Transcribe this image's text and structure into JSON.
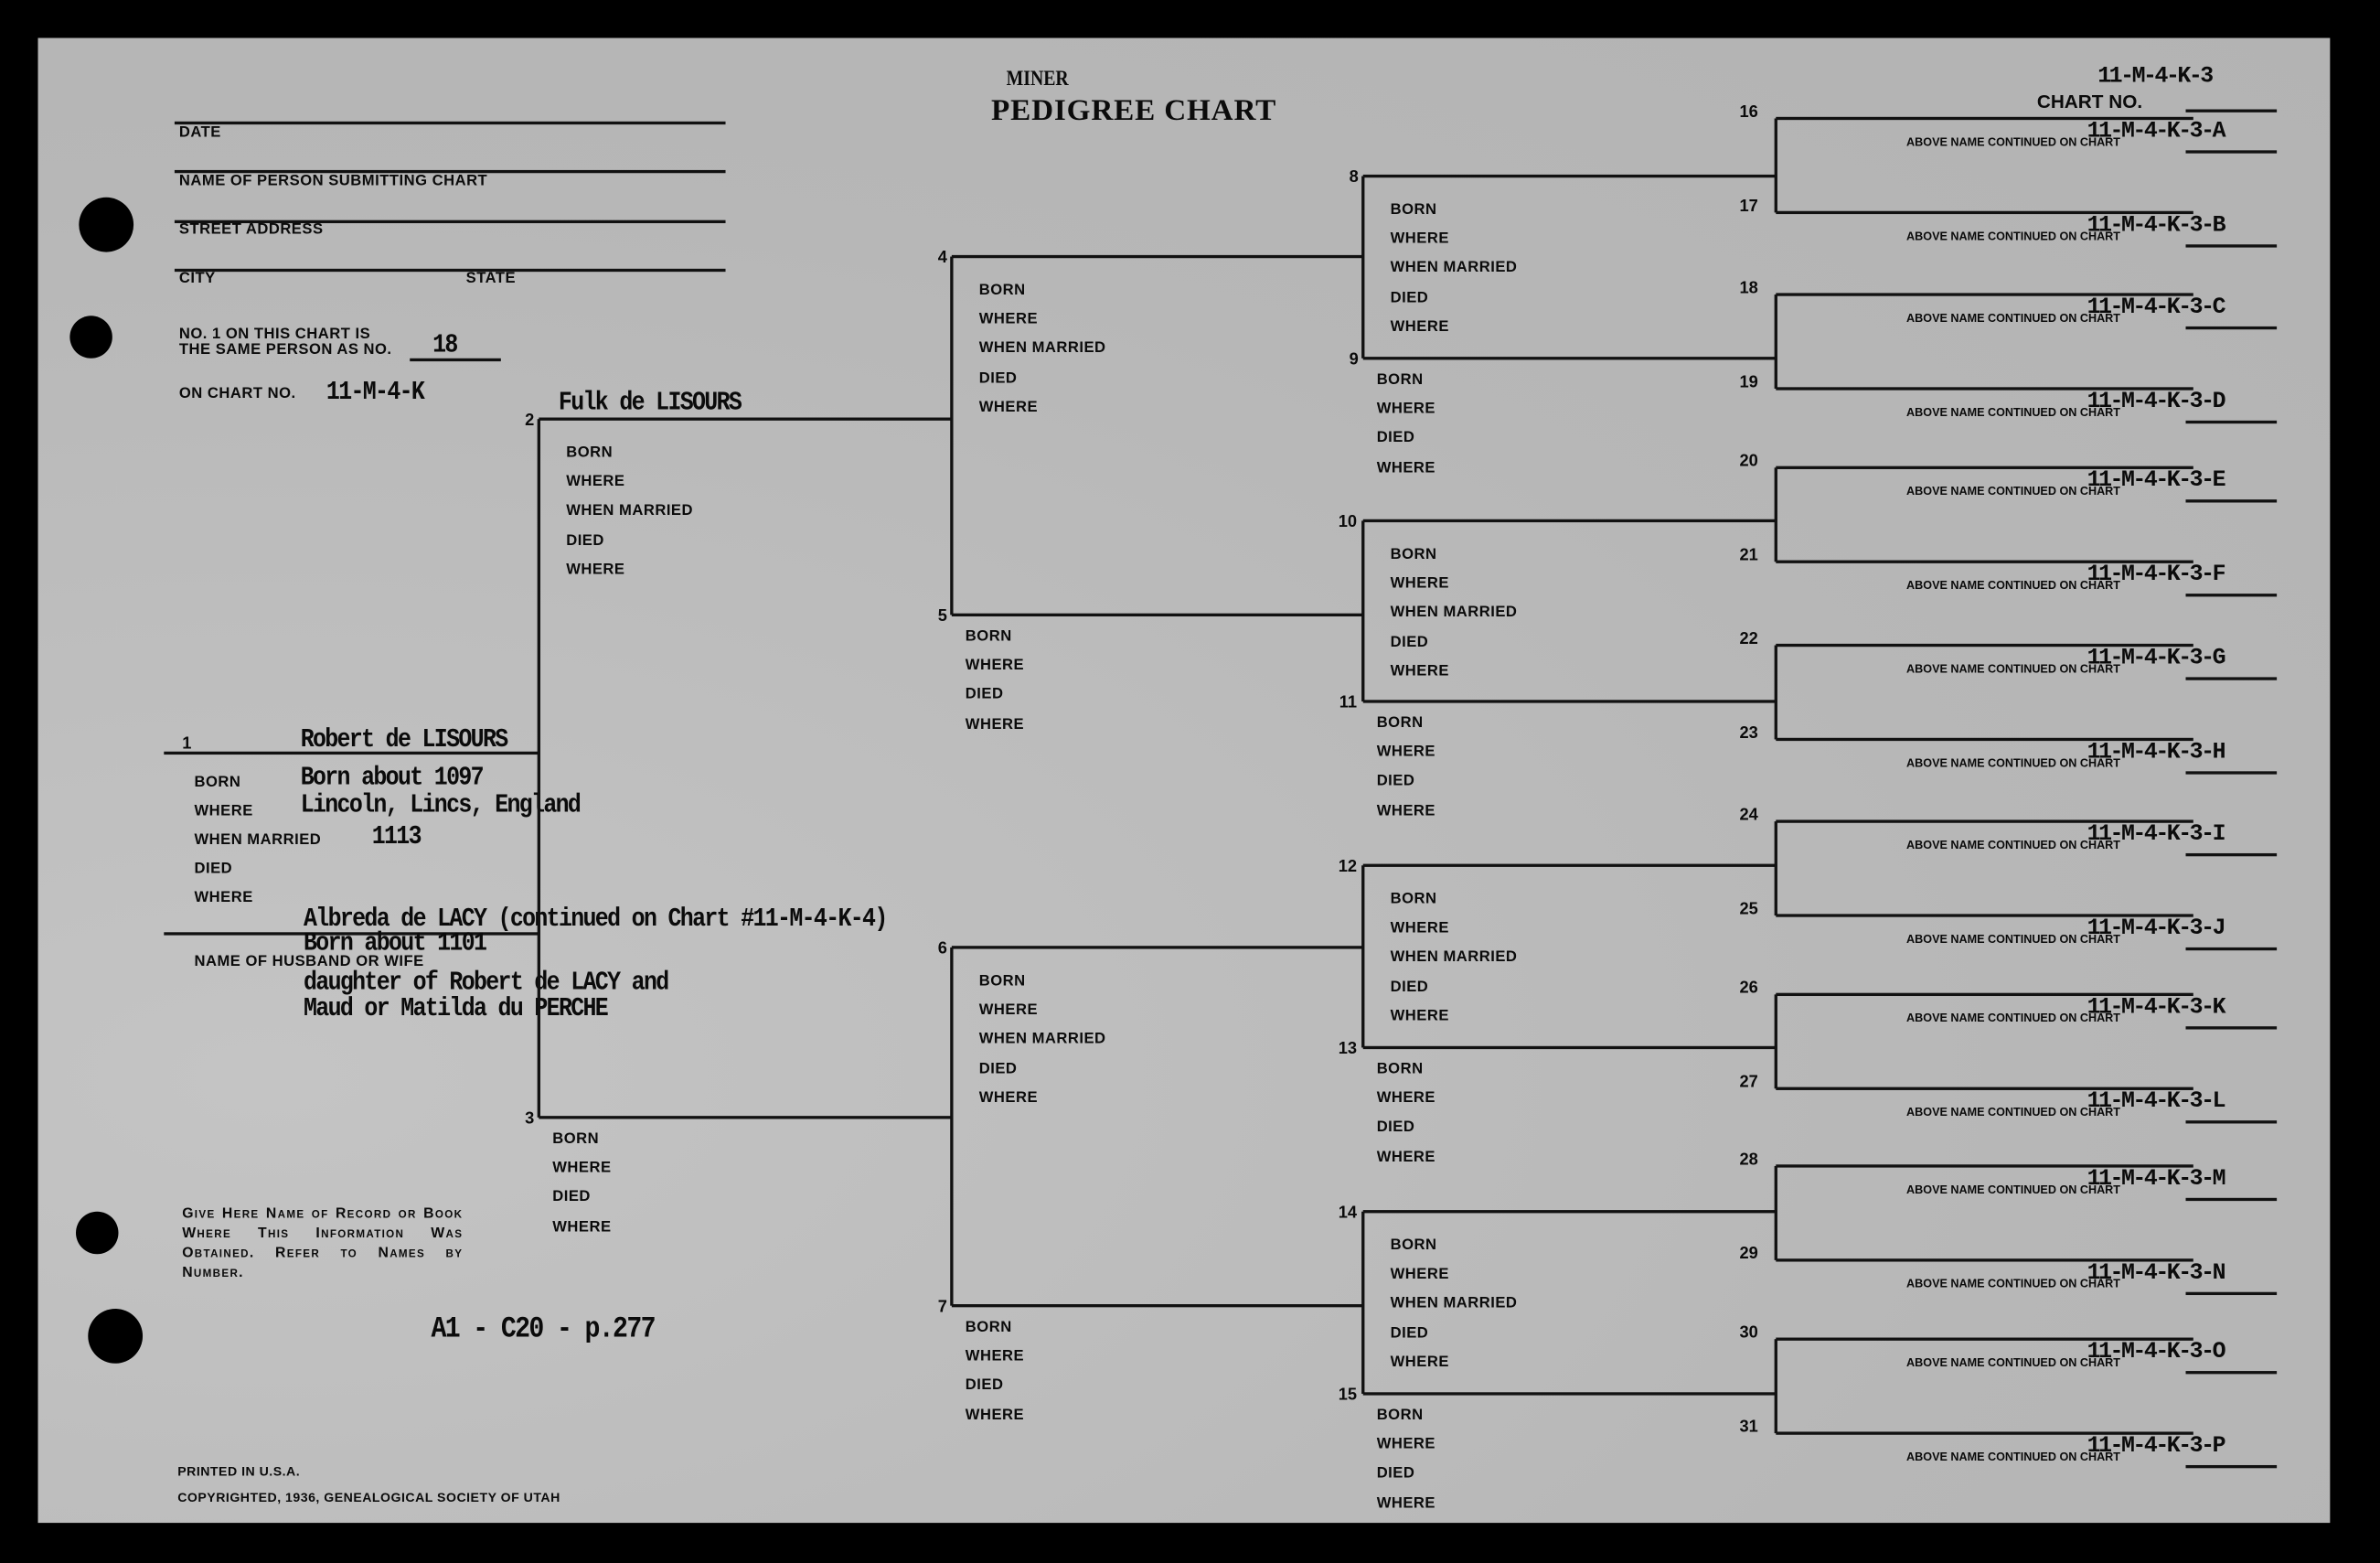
{
  "header": {
    "surname": "MINER",
    "title": "PEDIGREE CHART",
    "chart_no_value": "11-M-4-K-3",
    "chart_no_label": "CHART NO."
  },
  "form": {
    "date_label": "DATE",
    "submitter_label": "NAME OF PERSON SUBMITTING CHART",
    "street_label": "STREET ADDRESS",
    "city_label": "CITY",
    "state_label": "STATE",
    "same_person_line1": "NO. 1 ON THIS CHART IS",
    "same_person_line2": "THE SAME PERSON AS NO.",
    "same_person_value": "18",
    "on_chart_label": "ON CHART NO.",
    "on_chart_value": "11-M-4-K"
  },
  "person1": {
    "no": "1",
    "name": "Robert de LISOURS",
    "labels": [
      "BORN",
      "WHERE",
      "WHEN MARRIED",
      "DIED",
      "WHERE"
    ],
    "born": "Born about 1097",
    "where": "Lincoln, Lincs, England",
    "married": "1113",
    "spouse_label": "NAME OF HUSBAND OR WIFE",
    "spouse_lines": [
      "Albreda de LACY (continued on Chart #11-M-4-K-4)",
      "Born about 1101",
      "daughter of Robert de LACY and",
      "Maud or Matilda du PERCHE"
    ]
  },
  "persons": [
    {
      "no": "2",
      "name": "Fulk de LISOURS",
      "labels": [
        "BORN",
        "WHERE",
        "WHEN MARRIED",
        "DIED",
        "WHERE"
      ]
    },
    {
      "no": "3",
      "name": "",
      "labels": [
        "BORN",
        "WHERE",
        "DIED",
        "WHERE"
      ]
    },
    {
      "no": "4",
      "name": "",
      "labels": [
        "BORN",
        "WHERE",
        "WHEN MARRIED",
        "DIED",
        "WHERE"
      ]
    },
    {
      "no": "5",
      "name": "",
      "labels": [
        "BORN",
        "WHERE",
        "DIED",
        "WHERE"
      ]
    },
    {
      "no": "6",
      "name": "",
      "labels": [
        "BORN",
        "WHERE",
        "WHEN MARRIED",
        "DIED",
        "WHERE"
      ]
    },
    {
      "no": "7",
      "name": "",
      "labels": [
        "BORN",
        "WHERE",
        "DIED",
        "WHERE"
      ]
    },
    {
      "no": "8",
      "name": "",
      "labels": [
        "BORN",
        "WHERE",
        "WHEN MARRIED",
        "DIED",
        "WHERE"
      ]
    },
    {
      "no": "9",
      "name": "",
      "labels": [
        "BORN",
        "WHERE",
        "DIED",
        "WHERE"
      ]
    },
    {
      "no": "10",
      "name": "",
      "labels": [
        "BORN",
        "WHERE",
        "WHEN MARRIED",
        "DIED",
        "WHERE"
      ]
    },
    {
      "no": "11",
      "name": "",
      "labels": [
        "BORN",
        "WHERE",
        "DIED",
        "WHERE"
      ]
    },
    {
      "no": "12",
      "name": "",
      "labels": [
        "BORN",
        "WHERE",
        "WHEN MARRIED",
        "DIED",
        "WHERE"
      ]
    },
    {
      "no": "13",
      "name": "",
      "labels": [
        "BORN",
        "WHERE",
        "DIED",
        "WHERE"
      ]
    },
    {
      "no": "14",
      "name": "",
      "labels": [
        "BORN",
        "WHERE",
        "WHEN MARRIED",
        "DIED",
        "WHERE"
      ]
    },
    {
      "no": "15",
      "name": "",
      "labels": [
        "BORN",
        "WHERE",
        "DIED",
        "WHERE"
      ]
    }
  ],
  "continued_label": "ABOVE NAME CONTINUED ON CHART",
  "ancestors": [
    {
      "no": "16",
      "chart": "11-M-4-K-3-A"
    },
    {
      "no": "17",
      "chart": "11-M-4-K-3-B"
    },
    {
      "no": "18",
      "chart": "11-M-4-K-3-C"
    },
    {
      "no": "19",
      "chart": "11-M-4-K-3-D"
    },
    {
      "no": "20",
      "chart": "11-M-4-K-3-E"
    },
    {
      "no": "21",
      "chart": "11-M-4-K-3-F"
    },
    {
      "no": "22",
      "chart": "11-M-4-K-3-G"
    },
    {
      "no": "23",
      "chart": "11-M-4-K-3-H"
    },
    {
      "no": "24",
      "chart": "11-M-4-K-3-I"
    },
    {
      "no": "25",
      "chart": "11-M-4-K-3-J"
    },
    {
      "no": "26",
      "chart": "11-M-4-K-3-K"
    },
    {
      "no": "27",
      "chart": "11-M-4-K-3-L"
    },
    {
      "no": "28",
      "chart": "11-M-4-K-3-M"
    },
    {
      "no": "29",
      "chart": "11-M-4-K-3-N"
    },
    {
      "no": "30",
      "chart": "11-M-4-K-3-O"
    },
    {
      "no": "31",
      "chart": "11-M-4-K-3-P"
    }
  ],
  "source": {
    "instructions": "Give Here Name of Record or Book Where This Information Was Obtained. Refer to Names by Number.",
    "value": "A1 - C20 - p.277"
  },
  "footer": {
    "printed": "PRINTED IN U.S.A.",
    "copyright": "COPYRIGHTED, 1936, GENEALOGICAL SOCIETY OF UTAH"
  }
}
